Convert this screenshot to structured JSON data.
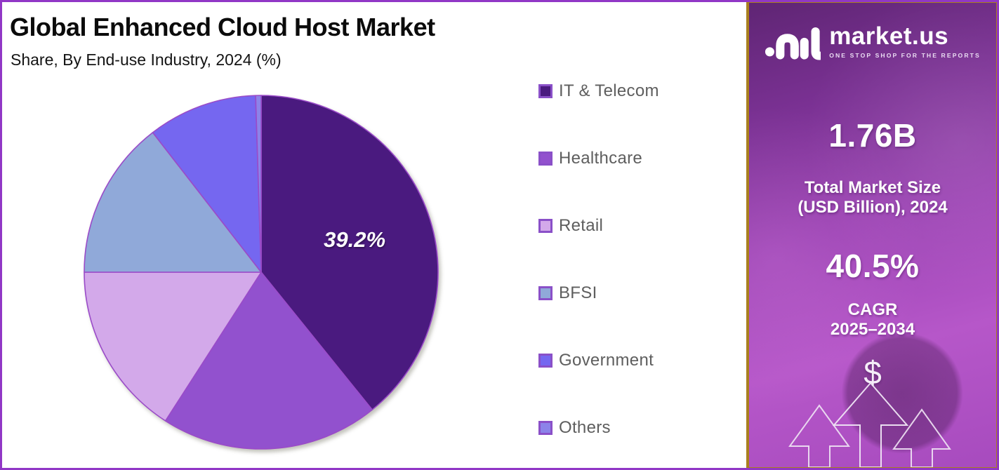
{
  "header": {
    "title": "Global Enhanced Cloud Host Market",
    "subtitle": "Share, By End-use Industry, 2024 (%)"
  },
  "chart_data": {
    "type": "pie",
    "title": "Global Enhanced Cloud Host Market",
    "subtitle": "Share, By End-use Industry, 2024 (%)",
    "categories": [
      "IT & Telecom",
      "Healthcare",
      "Retail",
      "BFSI",
      "Government",
      "Others"
    ],
    "values": [
      39.2,
      19.9,
      15.9,
      14.5,
      10.0,
      0.5
    ],
    "unit": "%",
    "start_angle_deg": 0,
    "direction": "clockwise",
    "labeled_slice": {
      "category": "IT & Telecom",
      "text": "39.2%"
    },
    "colors": [
      "#4A1A7F",
      "#9251CE",
      "#D3A9EA",
      "#90A9D9",
      "#7567F0",
      "#8C83E9"
    ],
    "stroke_color": "#9A4BC8",
    "legend_position": "right",
    "legend_text_color": "#5E5E5E"
  },
  "sidebar": {
    "brand": {
      "name": "market.us",
      "tagline": "ONE STOP SHOP FOR THE REPORTS"
    },
    "market_size": {
      "value": "1.76B",
      "label_line1": "Total Market Size",
      "label_line2": "(USD Billion), 2024"
    },
    "cagr": {
      "value": "40.5%",
      "label_line1": "CAGR",
      "label_line2": "2025–2034"
    },
    "dollar_symbol": "$"
  },
  "theme": {
    "frame_border_color": "#9137C6",
    "sidebar_border_color": "#A97F1E",
    "sidebar_background": "#9C43B4",
    "title_color": "#0b0b0b",
    "label_text_color": "#ffffff"
  }
}
